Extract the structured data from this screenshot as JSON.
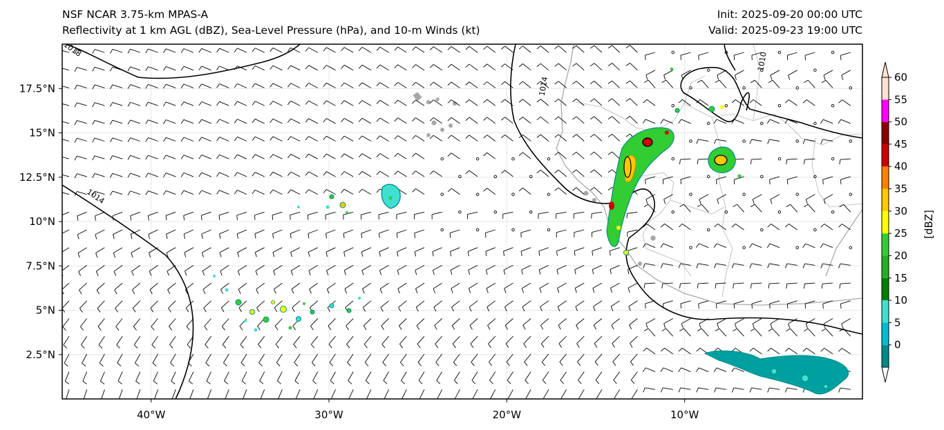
{
  "header": {
    "title_line1": "NSF NCAR 3.75-km MPAS-A",
    "title_line2": "Reflectivity at 1 km AGL (dBZ), Sea-Level Pressure (hPa), and 10-m Winds (kt)",
    "init": "Init: 2025-09-20 00:00 UTC",
    "valid": "Valid: 2025-09-23 19:00 UTC"
  },
  "map": {
    "lon_range": [
      -45,
      0
    ],
    "lat_range": [
      0,
      20
    ],
    "lon_ticks": [
      {
        "value": -40,
        "label": "40°W"
      },
      {
        "value": -30,
        "label": "30°W"
      },
      {
        "value": -20,
        "label": "20°W"
      },
      {
        "value": -10,
        "label": "10°W"
      }
    ],
    "lat_ticks": [
      {
        "value": 17.5,
        "label": "17.5°N"
      },
      {
        "value": 15,
        "label": "15°N"
      },
      {
        "value": 12.5,
        "label": "12.5°N"
      },
      {
        "value": 10,
        "label": "10°N"
      },
      {
        "value": 7.5,
        "label": "7.5°N"
      },
      {
        "value": 5,
        "label": "5°N"
      },
      {
        "value": 2.5,
        "label": "2.5°N"
      }
    ],
    "isobar_labels": [
      {
        "text": "1018",
        "lon": -44.5,
        "lat": 19.6
      },
      {
        "text": "1014",
        "lon": -43.2,
        "lat": 11.3
      },
      {
        "text": "1014",
        "lon": -17.8,
        "lat": 17.6
      },
      {
        "text": "1010",
        "lon": -5.5,
        "lat": 19.0
      }
    ]
  },
  "colorbar": {
    "unit_label": "[dBZ]",
    "levels": [
      {
        "label": "0",
        "color": "#008b8b"
      },
      {
        "label": "5",
        "color": "#00bcd4"
      },
      {
        "label": "10",
        "color": "#40e0d0"
      },
      {
        "label": "15",
        "color": "#008000"
      },
      {
        "label": "20",
        "color": "#22b022"
      },
      {
        "label": "25",
        "color": "#32cd32"
      },
      {
        "label": "30",
        "color": "#ffff00"
      },
      {
        "label": "35",
        "color": "#ffc800"
      },
      {
        "label": "40",
        "color": "#ff8000"
      },
      {
        "label": "45",
        "color": "#d00000"
      },
      {
        "label": "50",
        "color": "#8b0000"
      },
      {
        "label": "55",
        "color": "#ff00ff"
      },
      {
        "label": "60",
        "color": "#ffe0d0"
      }
    ]
  }
}
